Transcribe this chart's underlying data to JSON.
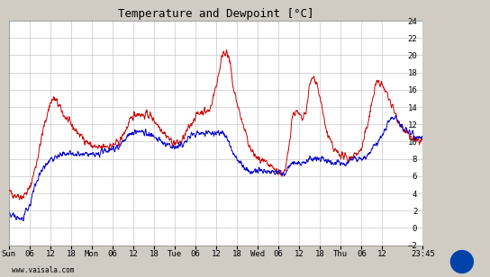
{
  "title": "Temperature and Dewpoint [°C]",
  "title_fontsize": 9,
  "ylim": [
    -2,
    24
  ],
  "yticks": [
    -2,
    0,
    2,
    4,
    6,
    8,
    10,
    12,
    14,
    16,
    18,
    20,
    22,
    24
  ],
  "bg_color": "#d0ccc4",
  "plot_bg_color": "#ffffff",
  "grid_color": "#c8c8c8",
  "temp_color": "#cc0000",
  "dewp_color": "#0000cc",
  "watermark": "www.vaisala.com",
  "x_tick_labels": [
    "Sun",
    "06",
    "12",
    "18",
    "Mon",
    "06",
    "12",
    "18",
    "Tue",
    "06",
    "12",
    "18",
    "Wed",
    "06",
    "12",
    "18",
    "Thu",
    "06",
    "12",
    "23:45"
  ],
  "x_tick_positions": [
    0,
    6,
    12,
    18,
    24,
    30,
    36,
    42,
    48,
    54,
    60,
    66,
    72,
    78,
    84,
    90,
    96,
    102,
    108,
    119.75
  ],
  "total_hours": 119.75,
  "line_width": 0.7,
  "temp_keyframes": [
    [
      0,
      4.2
    ],
    [
      2,
      3.8
    ],
    [
      4,
      3.6
    ],
    [
      6,
      4.5
    ],
    [
      8,
      7.5
    ],
    [
      10,
      11.5
    ],
    [
      12,
      14.5
    ],
    [
      13,
      15.0
    ],
    [
      14,
      14.5
    ],
    [
      16,
      13.0
    ],
    [
      18,
      12.0
    ],
    [
      20,
      11.0
    ],
    [
      22,
      10.2
    ],
    [
      24,
      9.5
    ],
    [
      26,
      9.2
    ],
    [
      28,
      9.5
    ],
    [
      30,
      9.5
    ],
    [
      32,
      10.0
    ],
    [
      34,
      11.5
    ],
    [
      36,
      13.0
    ],
    [
      37,
      13.3
    ],
    [
      38,
      13.2
    ],
    [
      39,
      13.0
    ],
    [
      40,
      13.2
    ],
    [
      41,
      13.0
    ],
    [
      42,
      12.5
    ],
    [
      44,
      11.5
    ],
    [
      46,
      10.5
    ],
    [
      47,
      10.0
    ],
    [
      48,
      9.8
    ],
    [
      50,
      10.0
    ],
    [
      52,
      11.5
    ],
    [
      54,
      13.0
    ],
    [
      56,
      13.5
    ],
    [
      58,
      13.5
    ],
    [
      60,
      16.5
    ],
    [
      62,
      20.5
    ],
    [
      63,
      20.3
    ],
    [
      64,
      19.0
    ],
    [
      65,
      16.0
    ],
    [
      66,
      14.5
    ],
    [
      68,
      11.5
    ],
    [
      70,
      9.0
    ],
    [
      71,
      8.5
    ],
    [
      72,
      8.0
    ],
    [
      74,
      7.5
    ],
    [
      76,
      7.0
    ],
    [
      78,
      6.5
    ],
    [
      79,
      6.3
    ],
    [
      80,
      6.5
    ],
    [
      81,
      9.5
    ],
    [
      82,
      13.0
    ],
    [
      83,
      13.5
    ],
    [
      84,
      13.0
    ],
    [
      85,
      12.5
    ],
    [
      86,
      13.5
    ],
    [
      87,
      16.5
    ],
    [
      88,
      17.5
    ],
    [
      89,
      17.0
    ],
    [
      90,
      15.0
    ],
    [
      92,
      11.0
    ],
    [
      94,
      9.0
    ],
    [
      96,
      8.5
    ],
    [
      98,
      8.0
    ],
    [
      100,
      8.5
    ],
    [
      102,
      9.0
    ],
    [
      104,
      12.5
    ],
    [
      106,
      16.5
    ],
    [
      107,
      17.0
    ],
    [
      108,
      16.5
    ],
    [
      110,
      15.0
    ],
    [
      112,
      13.0
    ],
    [
      114,
      11.5
    ],
    [
      116,
      10.5
    ],
    [
      118,
      10.0
    ],
    [
      119.75,
      10.2
    ]
  ],
  "dewp_keyframes": [
    [
      0,
      1.5
    ],
    [
      2,
      1.2
    ],
    [
      4,
      1.0
    ],
    [
      6,
      2.5
    ],
    [
      8,
      5.5
    ],
    [
      10,
      7.0
    ],
    [
      12,
      8.0
    ],
    [
      14,
      8.3
    ],
    [
      16,
      8.5
    ],
    [
      18,
      8.5
    ],
    [
      20,
      8.5
    ],
    [
      22,
      8.5
    ],
    [
      24,
      8.5
    ],
    [
      26,
      8.5
    ],
    [
      28,
      9.0
    ],
    [
      30,
      9.2
    ],
    [
      32,
      9.5
    ],
    [
      34,
      10.5
    ],
    [
      36,
      11.0
    ],
    [
      37,
      11.2
    ],
    [
      38,
      11.2
    ],
    [
      39,
      11.0
    ],
    [
      40,
      11.0
    ],
    [
      41,
      10.8
    ],
    [
      42,
      10.5
    ],
    [
      44,
      10.0
    ],
    [
      46,
      9.5
    ],
    [
      47,
      9.5
    ],
    [
      48,
      9.5
    ],
    [
      50,
      9.5
    ],
    [
      52,
      10.5
    ],
    [
      54,
      11.0
    ],
    [
      56,
      11.0
    ],
    [
      58,
      11.0
    ],
    [
      60,
      11.0
    ],
    [
      62,
      11.0
    ],
    [
      63,
      10.5
    ],
    [
      64,
      9.5
    ],
    [
      65,
      8.5
    ],
    [
      66,
      8.0
    ],
    [
      68,
      7.0
    ],
    [
      70,
      6.5
    ],
    [
      71,
      6.5
    ],
    [
      72,
      6.5
    ],
    [
      74,
      6.5
    ],
    [
      76,
      6.5
    ],
    [
      78,
      6.5
    ],
    [
      79,
      6.3
    ],
    [
      80,
      6.5
    ],
    [
      81,
      7.0
    ],
    [
      82,
      7.5
    ],
    [
      83,
      7.5
    ],
    [
      84,
      7.5
    ],
    [
      85,
      7.5
    ],
    [
      86,
      7.5
    ],
    [
      87,
      8.0
    ],
    [
      88,
      8.0
    ],
    [
      89,
      8.0
    ],
    [
      90,
      8.0
    ],
    [
      92,
      7.8
    ],
    [
      94,
      7.5
    ],
    [
      96,
      7.5
    ],
    [
      98,
      7.5
    ],
    [
      100,
      8.0
    ],
    [
      102,
      8.0
    ],
    [
      104,
      8.5
    ],
    [
      106,
      9.5
    ],
    [
      107,
      10.0
    ],
    [
      108,
      10.5
    ],
    [
      110,
      12.5
    ],
    [
      112,
      13.0
    ],
    [
      114,
      11.5
    ],
    [
      116,
      11.0
    ],
    [
      118,
      10.5
    ],
    [
      119.75,
      10.5
    ]
  ]
}
